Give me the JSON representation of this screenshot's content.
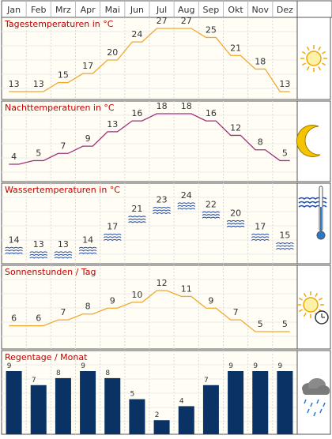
{
  "months": [
    "Jan",
    "Feb",
    "Mrz",
    "Apr",
    "Mai",
    "Jun",
    "Jul",
    "Aug",
    "Sep",
    "Okt",
    "Nov",
    "Dez"
  ],
  "colors": {
    "day_line": "#f0a830",
    "night_line": "#a0307a",
    "sun_line": "#f0a830",
    "title": "#c00000",
    "rain_bar": "#0a3264",
    "water_wave": "#2850a8",
    "panel_bg": "#fffdf4",
    "grid": "#d8d8d8",
    "border": "#555555"
  },
  "chart_data": [
    {
      "type": "line",
      "title": "Tagestemperaturen in °C",
      "categories": [
        "Jan",
        "Feb",
        "Mrz",
        "Apr",
        "Mai",
        "Jun",
        "Jul",
        "Aug",
        "Sep",
        "Okt",
        "Nov",
        "Dez"
      ],
      "values": [
        13,
        13,
        15,
        17,
        20,
        24,
        27,
        27,
        25,
        21,
        18,
        13
      ],
      "icon": "sun-icon"
    },
    {
      "type": "line",
      "title": "Nachttemperaturen in °C",
      "categories": [
        "Jan",
        "Feb",
        "Mrz",
        "Apr",
        "Mai",
        "Jun",
        "Jul",
        "Aug",
        "Sep",
        "Okt",
        "Nov",
        "Dez"
      ],
      "values": [
        4,
        5,
        7,
        9,
        13,
        16,
        18,
        18,
        16,
        12,
        8,
        5
      ],
      "icon": "moon-icon"
    },
    {
      "type": "scatter",
      "title": "Wassertemperaturen in °C",
      "categories": [
        "Jan",
        "Feb",
        "Mrz",
        "Apr",
        "Mai",
        "Jun",
        "Jul",
        "Aug",
        "Sep",
        "Okt",
        "Nov",
        "Dez"
      ],
      "values": [
        14,
        13,
        13,
        14,
        17,
        21,
        23,
        24,
        22,
        20,
        17,
        15
      ],
      "icon": "water-thermometer-icon"
    },
    {
      "type": "line",
      "title": "Sonnenstunden / Tag",
      "categories": [
        "Jan",
        "Feb",
        "Mrz",
        "Apr",
        "Mai",
        "Jun",
        "Jul",
        "Aug",
        "Sep",
        "Okt",
        "Nov",
        "Dez"
      ],
      "values": [
        6,
        6,
        7,
        8,
        9,
        10,
        12,
        11,
        9,
        7,
        5,
        5
      ],
      "icon": "sun-clock-icon"
    },
    {
      "type": "bar",
      "title": "Regentage / Monat",
      "categories": [
        "Jan",
        "Feb",
        "Mrz",
        "Apr",
        "Mai",
        "Jun",
        "Jul",
        "Aug",
        "Sep",
        "Okt",
        "Nov",
        "Dez"
      ],
      "values": [
        9,
        7,
        8,
        9,
        8,
        5,
        2,
        4,
        7,
        9,
        9,
        9
      ],
      "icon": "rain-cloud-icon"
    }
  ]
}
